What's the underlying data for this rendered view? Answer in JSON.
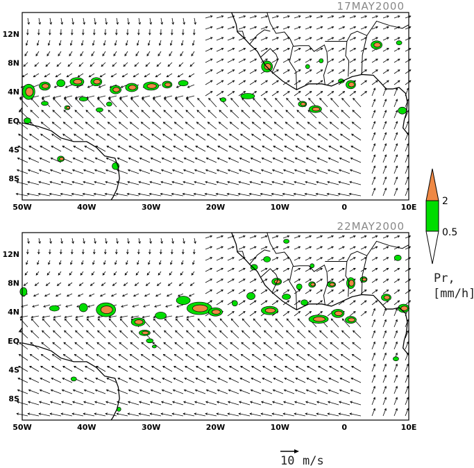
{
  "panels": [
    {
      "id": "top",
      "date_label": "17MAY2000",
      "lon_ticks": [
        "50W",
        "40W",
        "30W",
        "20W",
        "10W",
        "0",
        "10E"
      ],
      "lat_ticks": [
        "12N",
        "8N",
        "4N",
        "EQ",
        "4S",
        "8S"
      ]
    },
    {
      "id": "bottom",
      "date_label": "22MAY2000",
      "lon_ticks": [
        "50W",
        "40W",
        "30W",
        "20W",
        "10W",
        "0",
        "10E"
      ],
      "lat_ticks": [
        "12N",
        "8N",
        "4N",
        "EQ",
        "4S",
        "8S"
      ]
    }
  ],
  "map_extent": {
    "lon_range": [
      -50,
      10
    ],
    "lat_range": [
      -11,
      15
    ]
  },
  "legend": {
    "var_label": "Pr,",
    "unit_label": "[mm/h]",
    "levels": [
      "0.5",
      "2"
    ],
    "colors": {
      "low": "#ffffff",
      "mid": "#00dd00",
      "high": "#ee8844"
    }
  },
  "reference_vector": {
    "value": "10",
    "unit": "m/s"
  },
  "colors": {
    "rain_mid": "#00dd00",
    "rain_high": "#ee8844",
    "coast": "#000000",
    "arrows": "#000000"
  }
}
